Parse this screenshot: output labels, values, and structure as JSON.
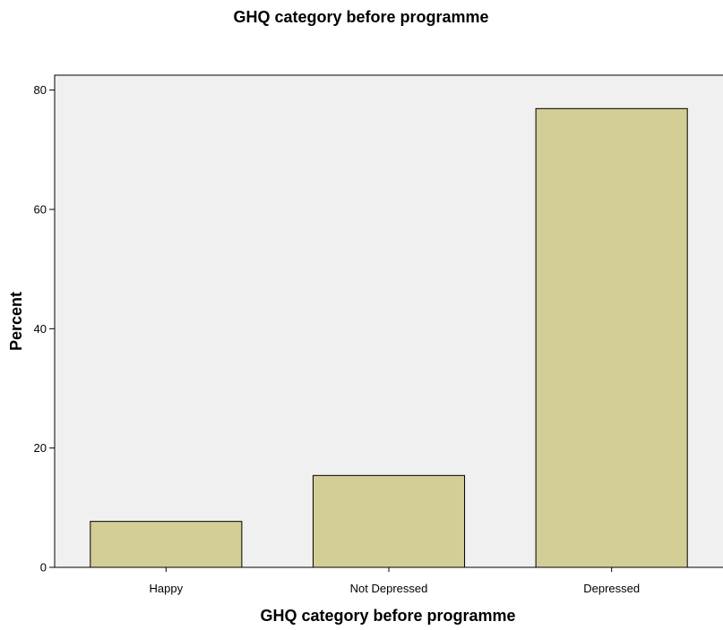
{
  "chart_data": {
    "type": "bar",
    "title": "GHQ category before programme",
    "xlabel": "GHQ category before programme",
    "ylabel": "Percent",
    "categories": [
      "Happy",
      "Not Depressed",
      "Depressed"
    ],
    "values": [
      7.7,
      15.4,
      76.9
    ],
    "ylim": [
      0,
      82.5
    ],
    "yticks": [
      0,
      20,
      40,
      60,
      80
    ],
    "grid": false,
    "colors": {
      "bar_fill": "#d3cd96",
      "bar_stroke": "#000000",
      "plot_background": "#f0f0f0",
      "page_background": "#ffffff"
    }
  }
}
